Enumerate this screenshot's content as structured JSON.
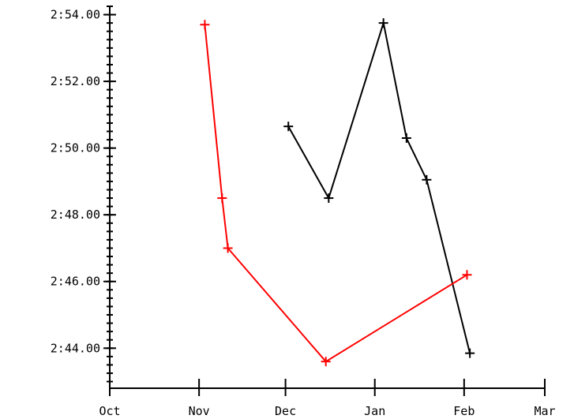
{
  "chart_data": {
    "type": "line",
    "title": "",
    "xlabel": "",
    "ylabel": "",
    "x_axis": {
      "kind": "date",
      "range": [
        "Oct",
        "Mar"
      ],
      "ticks": [
        {
          "label": "Oct",
          "value": "2000-10-01"
        },
        {
          "label": "Nov",
          "value": "2000-11-01"
        },
        {
          "label": "Dec",
          "value": "2000-12-01"
        },
        {
          "label": "Jan",
          "value": "2001-01-01"
        },
        {
          "label": "Feb",
          "value": "2001-02-01"
        },
        {
          "label": "Mar",
          "value": "2001-03-01"
        }
      ]
    },
    "y_axis": {
      "kind": "duration",
      "range": [
        "2:42.80",
        "2:54.25"
      ],
      "major_ticks": [
        "2:44.00",
        "2:46.00",
        "2:48.00",
        "2:50.00",
        "2:52.00",
        "2:54.00"
      ],
      "minor_step": "0:00.25"
    },
    "grid": false,
    "legend": "none",
    "series": [
      {
        "color": "#000000",
        "points": [
          {
            "x": "2000-12-02",
            "y": "2:50.65"
          },
          {
            "x": "2000-12-16",
            "y": "2:48.50"
          },
          {
            "x": "2001-01-04",
            "y": "2:53.75"
          },
          {
            "x": "2001-01-12",
            "y": "2:50.30"
          },
          {
            "x": "2001-01-19",
            "y": "2:49.05"
          },
          {
            "x": "2001-02-03",
            "y": "2:43.85"
          }
        ]
      },
      {
        "color": "#ff0000",
        "points": [
          {
            "x": "2000-11-03",
            "y": "2:53.70"
          },
          {
            "x": "2000-11-09",
            "y": "2:48.50"
          },
          {
            "x": "2000-11-11",
            "y": "2:47.00"
          },
          {
            "x": "2000-12-15",
            "y": "2:43.60"
          },
          {
            "x": "2001-02-02",
            "y": "2:46.20"
          }
        ]
      }
    ]
  }
}
